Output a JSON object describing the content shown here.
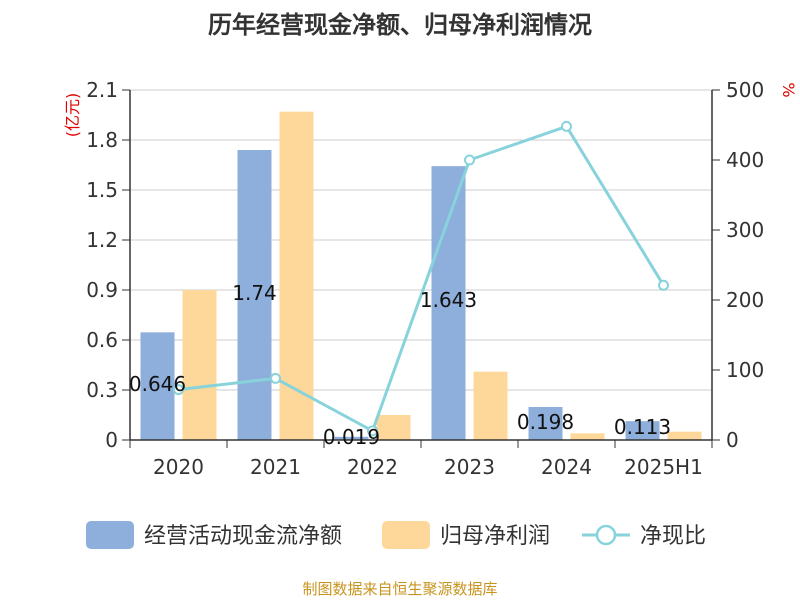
{
  "chart_data": {
    "type": "bar",
    "title": "历年经营现金净额、归母净利润情况",
    "categories": [
      "2020",
      "2021",
      "2022",
      "2023",
      "2024",
      "2025H1"
    ],
    "series": [
      {
        "name": "经营活动现金流净额",
        "kind": "bar",
        "axis": "left",
        "color": "#8eaedb",
        "values": [
          0.646,
          1.74,
          0.019,
          1.643,
          0.198,
          0.113
        ]
      },
      {
        "name": "归母净利润",
        "kind": "bar",
        "axis": "left",
        "color": "#fdd89a",
        "values": [
          0.9,
          1.97,
          0.15,
          0.41,
          0.04,
          0.05
        ]
      },
      {
        "name": "净现比",
        "kind": "line",
        "axis": "right",
        "color": "#88d3db",
        "values": [
          72,
          88,
          13,
          400,
          448,
          221
        ]
      }
    ],
    "data_labels": [
      "0.646",
      "1.74",
      "0.019",
      "1.643",
      "0.198",
      "0.113"
    ],
    "left_axis": {
      "unit": "(亿元)",
      "ylim": [
        0,
        2.1
      ],
      "ticks": [
        "0",
        "0.3",
        "0.6",
        "0.9",
        "1.2",
        "1.5",
        "1.8",
        "2.1"
      ]
    },
    "right_axis": {
      "unit": "%",
      "ylim": [
        0,
        500
      ],
      "ticks": [
        "0",
        "100",
        "200",
        "300",
        "400",
        "500"
      ]
    },
    "grid": true,
    "legend": "bottom",
    "source": "制图数据来自恒生聚源数据库"
  }
}
